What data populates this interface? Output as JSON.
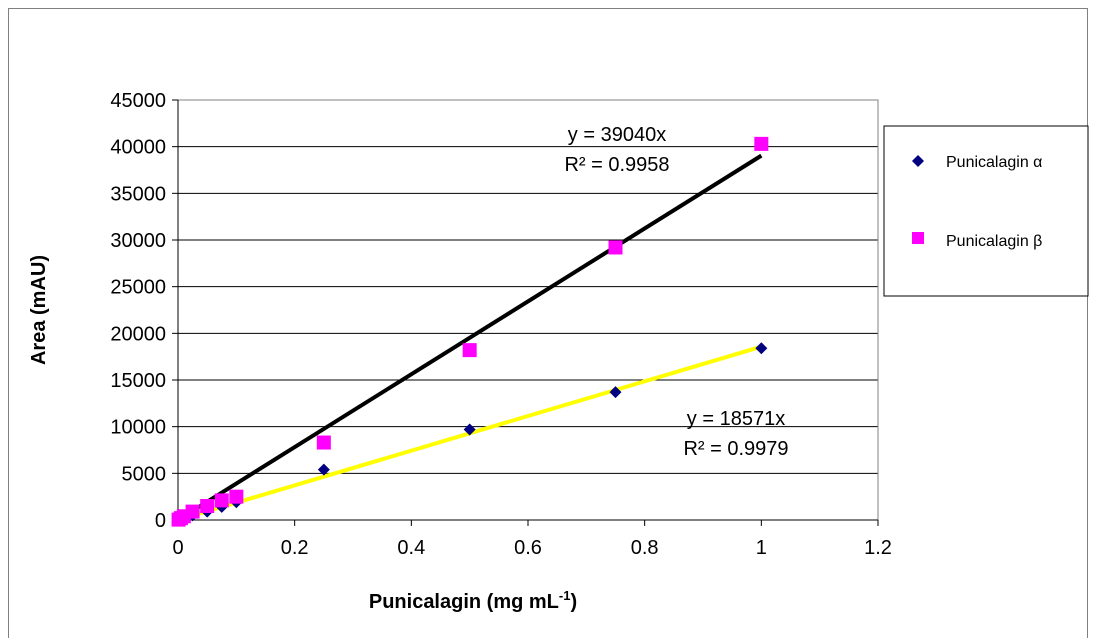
{
  "chart_data": {
    "type": "scatter",
    "xlabel": "Punicalagin (mg mL",
    "xlabel_sup": "-1",
    "xlabel_end": ")",
    "ylabel": "Area (mAU)",
    "xlim": [
      0,
      1.2
    ],
    "ylim": [
      0,
      45000
    ],
    "xticks": [
      0,
      0.2,
      0.4,
      0.6,
      0.8,
      1,
      1.2
    ],
    "xtick_labels": [
      "0",
      "0.2",
      "0.4",
      "0.6",
      "0.8",
      "1",
      "1.2"
    ],
    "yticks": [
      0,
      5000,
      10000,
      15000,
      20000,
      25000,
      30000,
      35000,
      40000,
      45000
    ],
    "ytick_labels": [
      "0",
      "5000",
      "10000",
      "15000",
      "20000",
      "25000",
      "30000",
      "35000",
      "40000",
      "45000"
    ],
    "grid": "horizontal",
    "legend_position": "right",
    "series": [
      {
        "name": "Punicalagin α",
        "marker": "diamond",
        "color": "#000080",
        "x": [
          0.001,
          0.005,
          0.01,
          0.025,
          0.05,
          0.075,
          0.1,
          0.25,
          0.5,
          0.75,
          1.0
        ],
        "y": [
          20,
          100,
          200,
          500,
          900,
          1400,
          1900,
          5400,
          9700,
          13700,
          18400
        ]
      },
      {
        "name": "Punicalagin β",
        "marker": "square",
        "color": "#ff00ff",
        "x": [
          0.001,
          0.005,
          0.01,
          0.025,
          0.05,
          0.075,
          0.1,
          0.25,
          0.5,
          0.75,
          1.0
        ],
        "y": [
          40,
          200,
          400,
          900,
          1500,
          2100,
          2500,
          8300,
          18200,
          29200,
          40300
        ]
      }
    ],
    "trendlines": [
      {
        "slope": 39040,
        "color": "#000000",
        "equation": "y = 39040x",
        "r2": "R² = 0.9958"
      },
      {
        "slope": 18571,
        "color": "#ffff00",
        "equation": "y = 18571x",
        "r2": "R² = 0.9979"
      }
    ]
  }
}
